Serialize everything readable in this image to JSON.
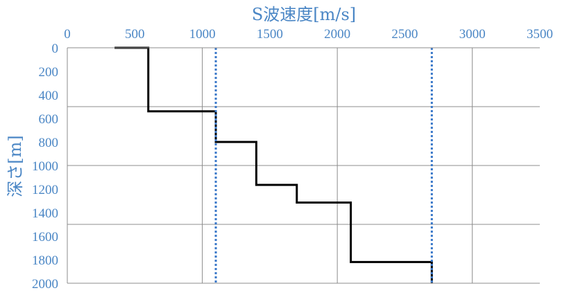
{
  "chart_data": {
    "type": "line",
    "title": "",
    "xlabel": "S波速度[m/s]",
    "ylabel": "深さ[m]",
    "x_axis_position": "top",
    "y_axis_inverted": true,
    "xlim": [
      0,
      3500
    ],
    "ylim": [
      0,
      2000
    ],
    "x_ticks": [
      0,
      500,
      1000,
      1500,
      2000,
      2500,
      3000,
      3500
    ],
    "y_ticks": [
      0,
      200,
      400,
      600,
      800,
      1000,
      1200,
      1400,
      1600,
      1800,
      2000
    ],
    "gridlines_x": [
      1000,
      2000,
      3000
    ],
    "gridlines_y": [
      500,
      1000,
      1500
    ],
    "series": [
      {
        "style": "solid",
        "color": "#000000",
        "points": [
          {
            "x": 350,
            "y": 0
          },
          {
            "x": 600,
            "y": 0
          },
          {
            "x": 600,
            "y": 540
          },
          {
            "x": 1100,
            "y": 540
          },
          {
            "x": 1100,
            "y": 800
          },
          {
            "x": 1400,
            "y": 800
          },
          {
            "x": 1400,
            "y": 1165
          },
          {
            "x": 1700,
            "y": 1165
          },
          {
            "x": 1700,
            "y": 1315
          },
          {
            "x": 2100,
            "y": 1315
          },
          {
            "x": 2100,
            "y": 1820
          },
          {
            "x": 2700,
            "y": 1820
          },
          {
            "x": 2700,
            "y": 2000
          }
        ]
      },
      {
        "style": "dotted",
        "color": "#3a78c9",
        "points": [
          {
            "x": 1100,
            "y": 0
          },
          {
            "x": 1100,
            "y": 2000
          }
        ]
      },
      {
        "style": "dotted",
        "color": "#3a78c9",
        "points": [
          {
            "x": 2700,
            "y": 0
          },
          {
            "x": 2700,
            "y": 2000
          }
        ]
      }
    ]
  }
}
